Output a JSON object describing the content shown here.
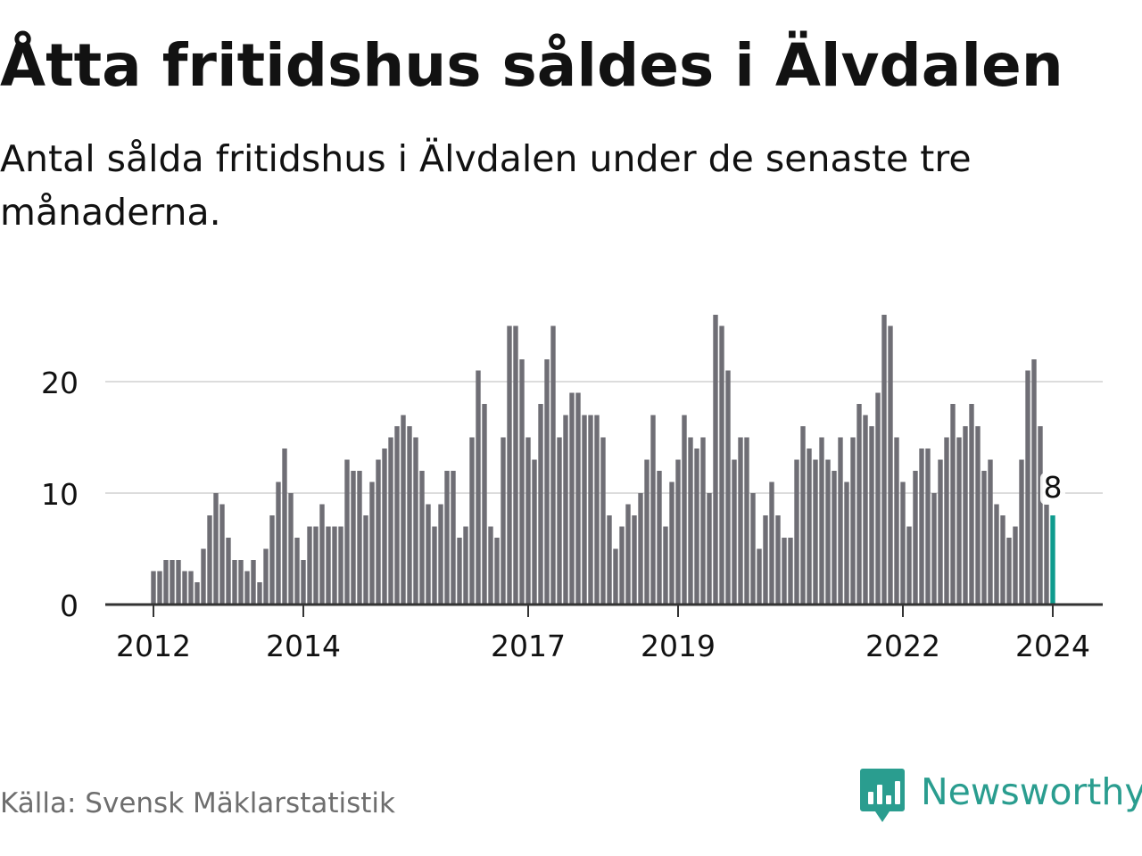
{
  "title": "Åtta fritidshus såldes i Älvdalen",
  "subtitle": "Antal sålda fritidshus i Älvdalen under de senaste tre månaderna.",
  "source": "Källa: Svensk Mäklarstatistik",
  "brand": {
    "name": "Newsworthy",
    "logo_icon": "bar-chart-speech-bubble-icon",
    "color": "#2a9d8f"
  },
  "colors": {
    "bar": "#6f6e75",
    "highlight": "#0f9b8e",
    "grid": "#dcdcdc",
    "axis": "#333333",
    "text": "#111111"
  },
  "chart_data": {
    "type": "bar",
    "title": "Åtta fritidshus såldes i Älvdalen",
    "xlabel": "",
    "ylabel": "",
    "ylim": [
      0,
      26
    ],
    "y_ticks": [
      0,
      10,
      20
    ],
    "x_tick_labels": [
      {
        "label": "2012",
        "index": 0
      },
      {
        "label": "2014",
        "index": 24
      },
      {
        "label": "2017",
        "index": 60
      },
      {
        "label": "2019",
        "index": 84
      },
      {
        "label": "2022",
        "index": 120
      },
      {
        "label": "2024",
        "index": 144
      }
    ],
    "highlight": {
      "index": 144,
      "value": 8,
      "label": "8"
    },
    "values": [
      3,
      3,
      4,
      4,
      4,
      3,
      3,
      2,
      5,
      8,
      10,
      9,
      6,
      4,
      4,
      3,
      4,
      2,
      5,
      8,
      11,
      14,
      10,
      6,
      4,
      7,
      7,
      9,
      7,
      7,
      7,
      13,
      12,
      12,
      8,
      11,
      13,
      14,
      15,
      16,
      17,
      16,
      15,
      12,
      9,
      7,
      9,
      12,
      12,
      6,
      7,
      15,
      21,
      18,
      7,
      6,
      15,
      25,
      25,
      22,
      15,
      13,
      18,
      22,
      25,
      15,
      17,
      19,
      19,
      17,
      17,
      17,
      15,
      8,
      5,
      7,
      9,
      8,
      10,
      13,
      17,
      12,
      7,
      11,
      13,
      17,
      15,
      14,
      15,
      10,
      26,
      25,
      21,
      13,
      15,
      15,
      10,
      5,
      8,
      11,
      8,
      6,
      6,
      13,
      16,
      14,
      13,
      15,
      13,
      12,
      15,
      11,
      15,
      18,
      17,
      16,
      19,
      26,
      25,
      15,
      11,
      7,
      12,
      14,
      14,
      10,
      13,
      15,
      18,
      15,
      16,
      18,
      16,
      12,
      13,
      9,
      8,
      6,
      7,
      13,
      21,
      22,
      16,
      9,
      8
    ]
  }
}
